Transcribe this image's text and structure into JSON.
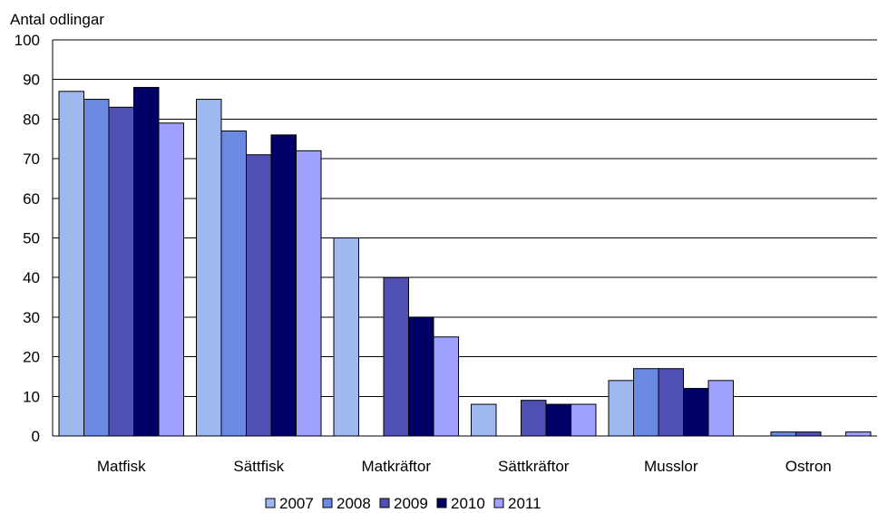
{
  "chart_data": {
    "type": "bar",
    "ylabel": "Antal odlingar",
    "xlabel": "",
    "ylim": [
      0,
      100
    ],
    "yticks": [
      0,
      10,
      20,
      30,
      40,
      50,
      60,
      70,
      80,
      90,
      100
    ],
    "grid": true,
    "legend_position": "bottom",
    "categories": [
      "Matfisk",
      "Sättfisk",
      "Matkräftor",
      "Sättkräftor",
      "Musslor",
      "Ostron"
    ],
    "series": [
      {
        "name": "2007",
        "color": "#A0B8F0",
        "values": [
          87,
          85,
          50,
          8,
          14,
          0
        ]
      },
      {
        "name": "2008",
        "color": "#6A8AE2",
        "values": [
          85,
          77,
          0,
          0,
          17,
          1
        ]
      },
      {
        "name": "2009",
        "color": "#5050B4",
        "values": [
          83,
          71,
          40,
          9,
          17,
          1
        ]
      },
      {
        "name": "2010",
        "color": "#000066",
        "values": [
          88,
          76,
          30,
          8,
          12,
          0
        ]
      },
      {
        "name": "2011",
        "color": "#A0A0FF",
        "values": [
          79,
          72,
          25,
          8,
          14,
          1
        ]
      }
    ]
  }
}
